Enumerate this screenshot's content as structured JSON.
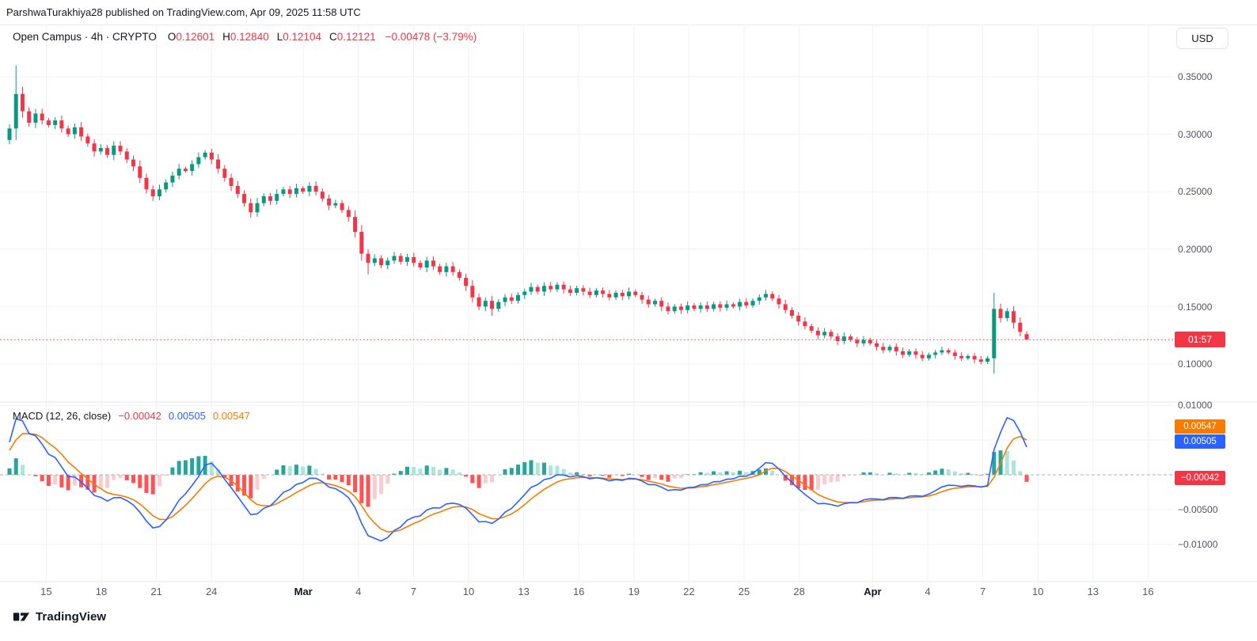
{
  "page": {
    "publisher_line": "ParshwaTurakhiya28 published on TradingView.com, Apr 09, 2025 11:58 UTC",
    "brand": "TradingView"
  },
  "toolbar": {
    "currency_label": "USD"
  },
  "legend": {
    "title": "Open Campus · 4h · CRYPTO",
    "ohlc": [
      {
        "k": "O",
        "v": "0.12601"
      },
      {
        "k": "H",
        "v": "0.12840"
      },
      {
        "k": "L",
        "v": "0.12104"
      },
      {
        "k": "C",
        "v": "0.12121"
      }
    ],
    "change": "−0.00478 (−3.79%)"
  },
  "price_axis": {
    "labels": [
      "0.35000",
      "0.30000",
      "0.25000",
      "0.20000",
      "0.15000",
      "0.10000"
    ],
    "countdown_badge": "01:57"
  },
  "macd_pane": {
    "title": "MACD (12, 26, close)",
    "hist_value": "−0.00042",
    "macd_value": "0.00505",
    "signal_value": "0.00547",
    "axis_labels": [
      "0.01000",
      "−0.00500",
      "−0.01000"
    ],
    "badges": {
      "signal": "0.00547",
      "macd": "0.00505",
      "hist": "−0.00042"
    }
  },
  "x_axis": {
    "labels": [
      {
        "t": "15",
        "d": 2
      },
      {
        "t": "18",
        "d": 5
      },
      {
        "t": "21",
        "d": 8
      },
      {
        "t": "24",
        "d": 11
      },
      {
        "t": "Mar",
        "d": 16,
        "major": true
      },
      {
        "t": "4",
        "d": 19
      },
      {
        "t": "7",
        "d": 22
      },
      {
        "t": "10",
        "d": 25
      },
      {
        "t": "13",
        "d": 28
      },
      {
        "t": "16",
        "d": 31
      },
      {
        "t": "19",
        "d": 34
      },
      {
        "t": "22",
        "d": 37
      },
      {
        "t": "25",
        "d": 40
      },
      {
        "t": "28",
        "d": 43
      },
      {
        "t": "Apr",
        "d": 47,
        "major": true
      },
      {
        "t": "4",
        "d": 50
      },
      {
        "t": "7",
        "d": 53
      },
      {
        "t": "10",
        "d": 56
      },
      {
        "t": "13",
        "d": 59
      },
      {
        "t": "16",
        "d": 62
      }
    ]
  },
  "colors": {
    "up": "#089981",
    "down": "#F23645",
    "macd_line": "#2962FF",
    "signal_line": "#F57C00",
    "hist_pos": "#26A69A",
    "hist_pos_weak": "#ACE5DC",
    "hist_neg": "#FF5252",
    "hist_neg_weak": "#FCCBCD",
    "price_line": "#F23645",
    "grid": "#F0F2F6",
    "separator": "#E4E7EB",
    "zero_line": "#A8ADB8",
    "badge_red": "#F23645",
    "badge_blue": "#2962FF",
    "badge_orange": "#F57C00"
  },
  "chart_data": [
    {
      "type": "candlestick",
      "symbol": "Open Campus",
      "interval": "4h",
      "market": "CRYPTO",
      "currency": "USD",
      "ohlc_current": {
        "open": 0.12601,
        "high": 0.1284,
        "low": 0.12104,
        "close": 0.12121,
        "change": -0.00478,
        "change_pct": -3.79
      },
      "ylim": [
        0.085,
        0.375
      ],
      "y_ticks": [
        0.35,
        0.3,
        0.25,
        0.2,
        0.15,
        0.1
      ],
      "current_price_level": 0.12121,
      "closes": [
        0.305,
        0.335,
        0.32,
        0.31,
        0.318,
        0.312,
        0.308,
        0.312,
        0.305,
        0.3,
        0.306,
        0.298,
        0.292,
        0.285,
        0.288,
        0.282,
        0.29,
        0.285,
        0.278,
        0.272,
        0.262,
        0.252,
        0.246,
        0.252,
        0.258,
        0.264,
        0.27,
        0.268,
        0.274,
        0.28,
        0.284,
        0.278,
        0.27,
        0.262,
        0.255,
        0.248,
        0.24,
        0.232,
        0.24,
        0.246,
        0.242,
        0.248,
        0.252,
        0.248,
        0.253,
        0.25,
        0.255,
        0.25,
        0.244,
        0.238,
        0.24,
        0.234,
        0.228,
        0.215,
        0.196,
        0.188,
        0.192,
        0.186,
        0.19,
        0.194,
        0.189,
        0.193,
        0.188,
        0.184,
        0.19,
        0.185,
        0.18,
        0.185,
        0.18,
        0.175,
        0.168,
        0.158,
        0.15,
        0.155,
        0.148,
        0.154,
        0.158,
        0.155,
        0.16,
        0.163,
        0.167,
        0.163,
        0.168,
        0.165,
        0.169,
        0.165,
        0.162,
        0.166,
        0.163,
        0.16,
        0.164,
        0.161,
        0.158,
        0.162,
        0.159,
        0.163,
        0.16,
        0.156,
        0.152,
        0.155,
        0.15,
        0.146,
        0.15,
        0.147,
        0.151,
        0.148,
        0.151,
        0.148,
        0.152,
        0.149,
        0.152,
        0.15,
        0.154,
        0.151,
        0.155,
        0.158,
        0.161,
        0.157,
        0.152,
        0.147,
        0.142,
        0.137,
        0.133,
        0.129,
        0.125,
        0.128,
        0.124,
        0.12,
        0.124,
        0.121,
        0.118,
        0.121,
        0.118,
        0.115,
        0.112,
        0.115,
        0.111,
        0.108,
        0.111,
        0.108,
        0.105,
        0.108,
        0.11,
        0.112,
        0.11,
        0.107,
        0.105,
        0.107,
        0.104,
        0.102,
        0.105,
        0.148,
        0.14,
        0.146,
        0.136,
        0.128,
        0.121
      ],
      "special_candles": {
        "1": {
          "h": 0.36
        },
        "55": {
          "l": 0.178
        },
        "74": {
          "l": 0.142
        },
        "151": {
          "h": 0.162
        },
        "156": {
          "o": 0.12601,
          "h": 0.1284,
          "l": 0.12104,
          "c": 0.12121
        }
      }
    },
    {
      "type": "macd",
      "title": "MACD (12, 26, close)",
      "params": {
        "fast": 12,
        "slow": 26,
        "signal": 9,
        "source": "close"
      },
      "current": {
        "histogram": -0.00042,
        "macd": 0.00505,
        "signal": 0.00547
      },
      "ylim": [
        -0.013,
        0.0105
      ],
      "y_ticks": [
        0.01,
        -0.005,
        -0.01
      ],
      "visible_extremes": {
        "macd_max": 0.0082,
        "macd_min": -0.0095,
        "hist_max": 0.0035,
        "hist_min": -0.0046
      },
      "derived_from": "chart_data[0].closes"
    }
  ]
}
